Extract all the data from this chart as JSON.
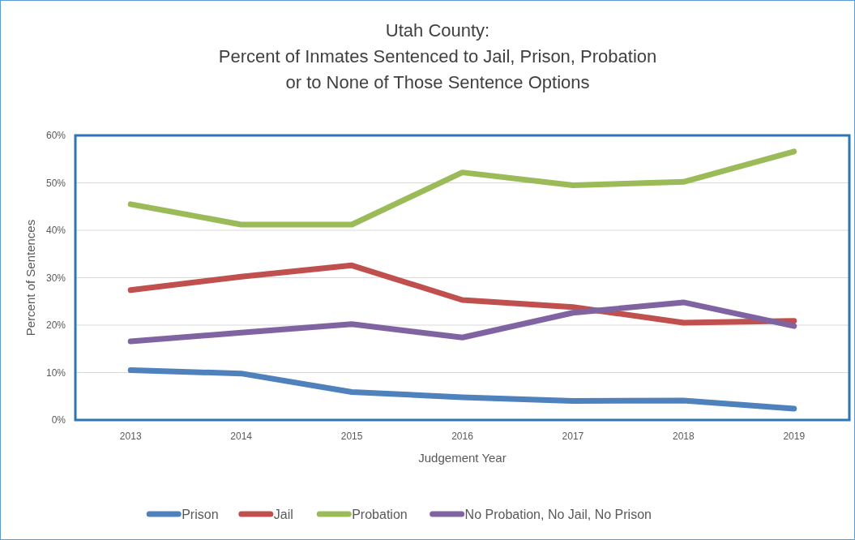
{
  "chart_data": {
    "type": "line",
    "title": "Utah County:\nPercent of  Inmates Sentenced to Jail, Prison, Probation\nor to None of Those Sentence Options",
    "xlabel": "Judgement Year",
    "ylabel": "Percent of Sentences",
    "categories": [
      "2013",
      "2014",
      "2015",
      "2016",
      "2017",
      "2018",
      "2019"
    ],
    "series": [
      {
        "name": "Prison",
        "color": "#4f81bd",
        "values": [
          10.5,
          9.8,
          5.9,
          4.8,
          4.0,
          4.1,
          2.4
        ]
      },
      {
        "name": "Jail",
        "color": "#c0504d",
        "values": [
          27.4,
          30.2,
          32.6,
          25.3,
          23.8,
          20.5,
          20.9
        ]
      },
      {
        "name": "Probation",
        "color": "#9bbb59",
        "values": [
          45.5,
          41.2,
          41.2,
          52.2,
          49.5,
          50.2,
          56.6
        ]
      },
      {
        "name": "No Probation, No Jail, No Prison",
        "color": "#8064a2",
        "values": [
          16.6,
          18.4,
          20.2,
          17.4,
          22.6,
          24.8,
          19.8
        ]
      }
    ],
    "ylim": [
      0,
      60
    ],
    "yticks": [
      {
        "value": 0,
        "label": "0%"
      },
      {
        "value": 10,
        "label": "10%"
      },
      {
        "value": 20,
        "label": "20%"
      },
      {
        "value": 30,
        "label": "30%"
      },
      {
        "value": 40,
        "label": "40%"
      },
      {
        "value": 50,
        "label": "50%"
      },
      {
        "value": 60,
        "label": "60%"
      }
    ],
    "grid": "y",
    "legend": "bottom",
    "marker": "none",
    "line_style": "solid"
  }
}
